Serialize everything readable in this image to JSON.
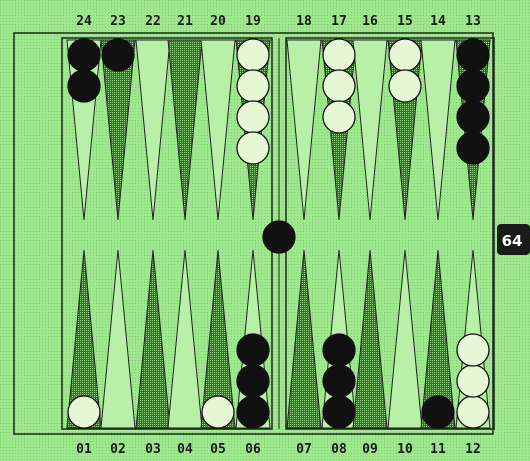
{
  "board": {
    "top_point_labels": [
      "24",
      "23",
      "22",
      "21",
      "20",
      "19",
      "18",
      "17",
      "16",
      "15",
      "14",
      "13"
    ],
    "bottom_point_labels": [
      "01",
      "02",
      "03",
      "04",
      "05",
      "06",
      "07",
      "08",
      "09",
      "10",
      "11",
      "12"
    ],
    "checkers": {
      "24": {
        "color": "black",
        "count": 2
      },
      "23": {
        "color": "black",
        "count": 1
      },
      "19": {
        "color": "white",
        "count": 4
      },
      "17": {
        "color": "white",
        "count": 3
      },
      "15": {
        "color": "white",
        "count": 2
      },
      "13": {
        "color": "black",
        "count": 4
      },
      "1": {
        "color": "white",
        "count": 1
      },
      "5": {
        "color": "white",
        "count": 1
      },
      "6": {
        "color": "black",
        "count": 3
      },
      "8": {
        "color": "black",
        "count": 3
      },
      "11": {
        "color": "black",
        "count": 1
      },
      "12": {
        "color": "white",
        "count": 3
      }
    },
    "bar": {
      "color": "black",
      "count": 1
    }
  },
  "doubling_cube": {
    "value": "64"
  },
  "colors": {
    "background": "#9ee88e",
    "dark_point": "#4f7d45",
    "light_point": "#b8f0a8",
    "black_checker": "#111111",
    "white_checker": "#e6f7d6"
  }
}
